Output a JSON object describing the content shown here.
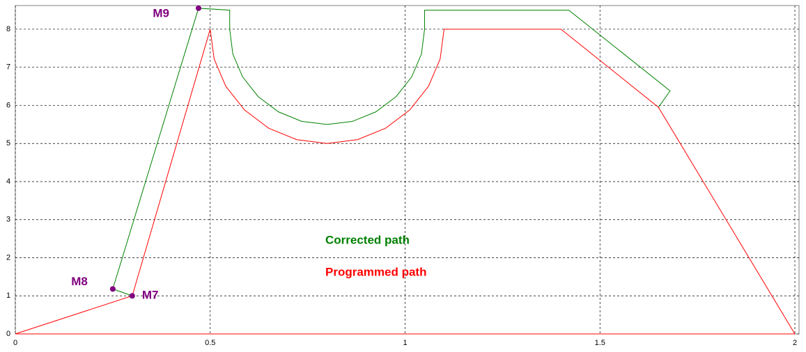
{
  "chart_data": {
    "type": "line",
    "xlim": [
      0,
      2
    ],
    "ylim": [
      0,
      8.62
    ],
    "xticks": [
      0,
      0.5,
      1,
      1.5,
      2
    ],
    "yticks": [
      0,
      1,
      2,
      3,
      4,
      5,
      6,
      7,
      8
    ],
    "grid": true,
    "series": [
      {
        "name": "Corrected path",
        "color": "#008000",
        "x": [
          0.3,
          0.25,
          0.47,
          0.55,
          0.55,
          0.558,
          0.583,
          0.623,
          0.675,
          0.735,
          0.8,
          0.865,
          0.925,
          0.977,
          1.017,
          1.042,
          1.05,
          1.05,
          1.42,
          1.68,
          1.65
        ],
        "values": [
          1,
          1.18,
          8.55,
          8.5,
          8,
          7.35,
          6.75,
          6.23,
          5.83,
          5.58,
          5.5,
          5.58,
          5.83,
          6.23,
          6.75,
          7.35,
          8,
          8.5,
          8.5,
          6.38,
          5.95
        ]
      },
      {
        "name": "Programmed path",
        "color": "#ff0000",
        "x": [
          0,
          0.3,
          0.5,
          0.51,
          0.54,
          0.588,
          0.65,
          0.722,
          0.8,
          0.878,
          0.95,
          1.012,
          1.06,
          1.09,
          1.1,
          1.4,
          1.65,
          2,
          0
        ],
        "values": [
          0,
          1,
          8,
          7.22,
          6.5,
          5.88,
          5.4,
          5.1,
          5,
          5.1,
          5.4,
          5.88,
          6.5,
          7.22,
          8,
          8,
          5.95,
          0,
          0
        ]
      }
    ],
    "annotations": [
      {
        "text": "M7",
        "x": 0.3,
        "y": 1,
        "color": "#800080"
      },
      {
        "text": "M8",
        "x": 0.25,
        "y": 1.18,
        "color": "#800080"
      },
      {
        "text": "M9",
        "x": 0.47,
        "y": 8.55,
        "color": "#800080"
      }
    ]
  }
}
